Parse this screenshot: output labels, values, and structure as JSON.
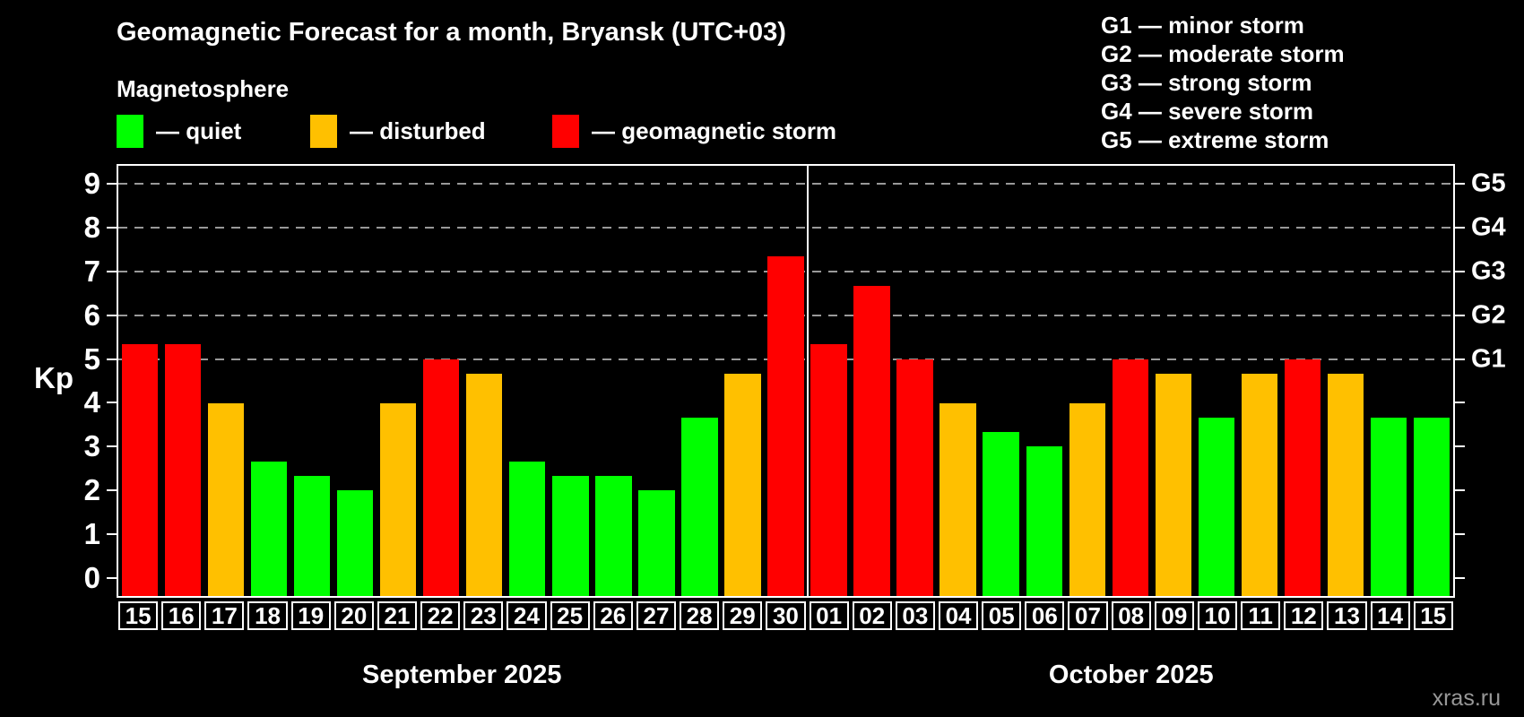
{
  "header": {
    "title": "Geomagnetic Forecast for a month, Bryansk (UTC+03)",
    "subtitle": "Magnetosphere"
  },
  "legend": {
    "items": [
      {
        "name": "quiet",
        "label": "— quiet",
        "color": "#00ff00"
      },
      {
        "name": "disturbed",
        "label": "— disturbed",
        "color": "#ffc000"
      },
      {
        "name": "storm",
        "label": "— geomagnetic storm",
        "color": "#ff0000"
      }
    ]
  },
  "g_legend": {
    "lines": [
      "G1 — minor storm",
      "G2 — moderate storm",
      "G3 — strong storm",
      "G4 — severe storm",
      "G5 — extreme storm"
    ]
  },
  "watermark": "xras.ru",
  "chart_data": {
    "type": "bar",
    "title": "Geomagnetic Forecast for a month, Bryansk (UTC+03)",
    "subtitle": "Magnetosphere",
    "ylabel": "Kp",
    "ylim": [
      0,
      9
    ],
    "yticks": [
      0,
      1,
      2,
      3,
      4,
      5,
      6,
      7,
      8,
      9
    ],
    "grid_levels": [
      5,
      6,
      7,
      8,
      9
    ],
    "grid_style": "dashed gray horizontal lines at Kp 5-9 only",
    "legend_position": "top-left",
    "right_axis_labels": [
      {
        "label": "G1",
        "kp": 5
      },
      {
        "label": "G2",
        "kp": 6
      },
      {
        "label": "G3",
        "kp": 7
      },
      {
        "label": "G4",
        "kp": 8
      },
      {
        "label": "G5",
        "kp": 9
      }
    ],
    "status_colors": {
      "quiet": "#00ff00",
      "disturbed": "#ffc000",
      "storm": "#ff0000"
    },
    "series": [
      {
        "name": "September 2025",
        "categories": [
          "15",
          "16",
          "17",
          "18",
          "19",
          "20",
          "21",
          "22",
          "23",
          "24",
          "25",
          "26",
          "27",
          "28",
          "29",
          "30"
        ],
        "values": [
          5.33,
          5.33,
          4.0,
          2.67,
          2.33,
          2.0,
          4.0,
          5.0,
          4.67,
          2.67,
          2.33,
          2.33,
          2.0,
          3.67,
          4.67,
          7.33
        ],
        "status": [
          "storm",
          "storm",
          "disturbed",
          "quiet",
          "quiet",
          "quiet",
          "disturbed",
          "storm",
          "disturbed",
          "quiet",
          "quiet",
          "quiet",
          "quiet",
          "quiet",
          "disturbed",
          "storm"
        ]
      },
      {
        "name": "October 2025",
        "categories": [
          "01",
          "02",
          "03",
          "04",
          "05",
          "06",
          "07",
          "08",
          "09",
          "10",
          "11",
          "12",
          "13",
          "14",
          "15"
        ],
        "values": [
          5.33,
          6.67,
          5.0,
          4.0,
          3.33,
          3.0,
          4.0,
          5.0,
          4.67,
          3.67,
          4.67,
          5.0,
          4.67,
          3.67,
          3.67
        ],
        "status": [
          "storm",
          "storm",
          "storm",
          "disturbed",
          "quiet",
          "quiet",
          "disturbed",
          "storm",
          "disturbed",
          "quiet",
          "disturbed",
          "storm",
          "disturbed",
          "quiet",
          "quiet"
        ]
      }
    ]
  }
}
